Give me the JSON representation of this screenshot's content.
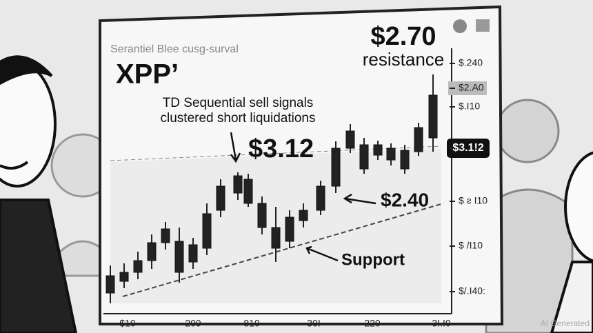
{
  "header": {
    "subtitle": "Serantiel Blee cusg-surval",
    "title": "XPP’"
  },
  "annotations": {
    "signal_line1": "TD Sequential sell signals",
    "signal_line2": "clustered short liquidations",
    "peak_price": "$3.12",
    "resistance_price": "$2.70",
    "resistance_label": "resistance",
    "mid_price": "$2.40",
    "support_label": "Support"
  },
  "right_axis": {
    "labels": [
      "$.240",
      "$2.A0",
      "$.I10",
      "$3.1!2",
      "$ ƨ I10",
      "$ /I10",
      "$/.I40:"
    ]
  },
  "bottom_axis": {
    "labels": [
      "$10",
      "209",
      "810",
      "30I",
      "220",
      "3I.I0"
    ]
  },
  "watermark": "AI Generated"
}
